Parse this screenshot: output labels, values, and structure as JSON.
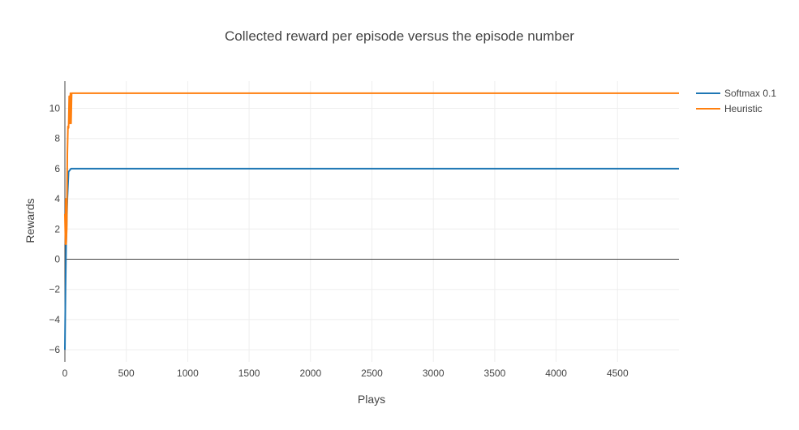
{
  "chart_data": {
    "type": "line",
    "title": "Collected reward per episode versus the episode number",
    "xlabel": "Plays",
    "ylabel": "Rewards",
    "xlim": [
      0,
      5000
    ],
    "ylim": [
      -6.8,
      11.8
    ],
    "x_ticks": [
      0,
      500,
      1000,
      1500,
      2000,
      2500,
      3000,
      3500,
      4000,
      4500
    ],
    "y_ticks": [
      -6,
      -4,
      -2,
      0,
      2,
      4,
      6,
      8,
      10
    ],
    "grid": true,
    "legend_position": "top-right",
    "series": [
      {
        "name": "Softmax 0.1",
        "color": "#1f77b4",
        "x": [
          0,
          5,
          10,
          20,
          30,
          50,
          100,
          500,
          1000,
          2000,
          3000,
          4000,
          5000
        ],
        "y": [
          -6,
          -2,
          1,
          4,
          5.8,
          6,
          6,
          6,
          6,
          6,
          6,
          6,
          6
        ]
      },
      {
        "name": "Heuristic",
        "color": "#ff7f0e",
        "x": [
          0,
          5,
          8,
          10,
          15,
          20,
          25,
          30,
          35,
          40,
          45,
          50,
          55,
          60,
          100,
          500,
          1000,
          2000,
          3000,
          4000,
          5000
        ],
        "y": [
          3,
          1,
          4,
          1,
          2,
          7,
          8.8,
          8.7,
          10.8,
          9,
          11,
          9,
          11,
          11,
          11,
          11,
          11,
          11,
          11,
          11,
          11
        ]
      }
    ]
  }
}
